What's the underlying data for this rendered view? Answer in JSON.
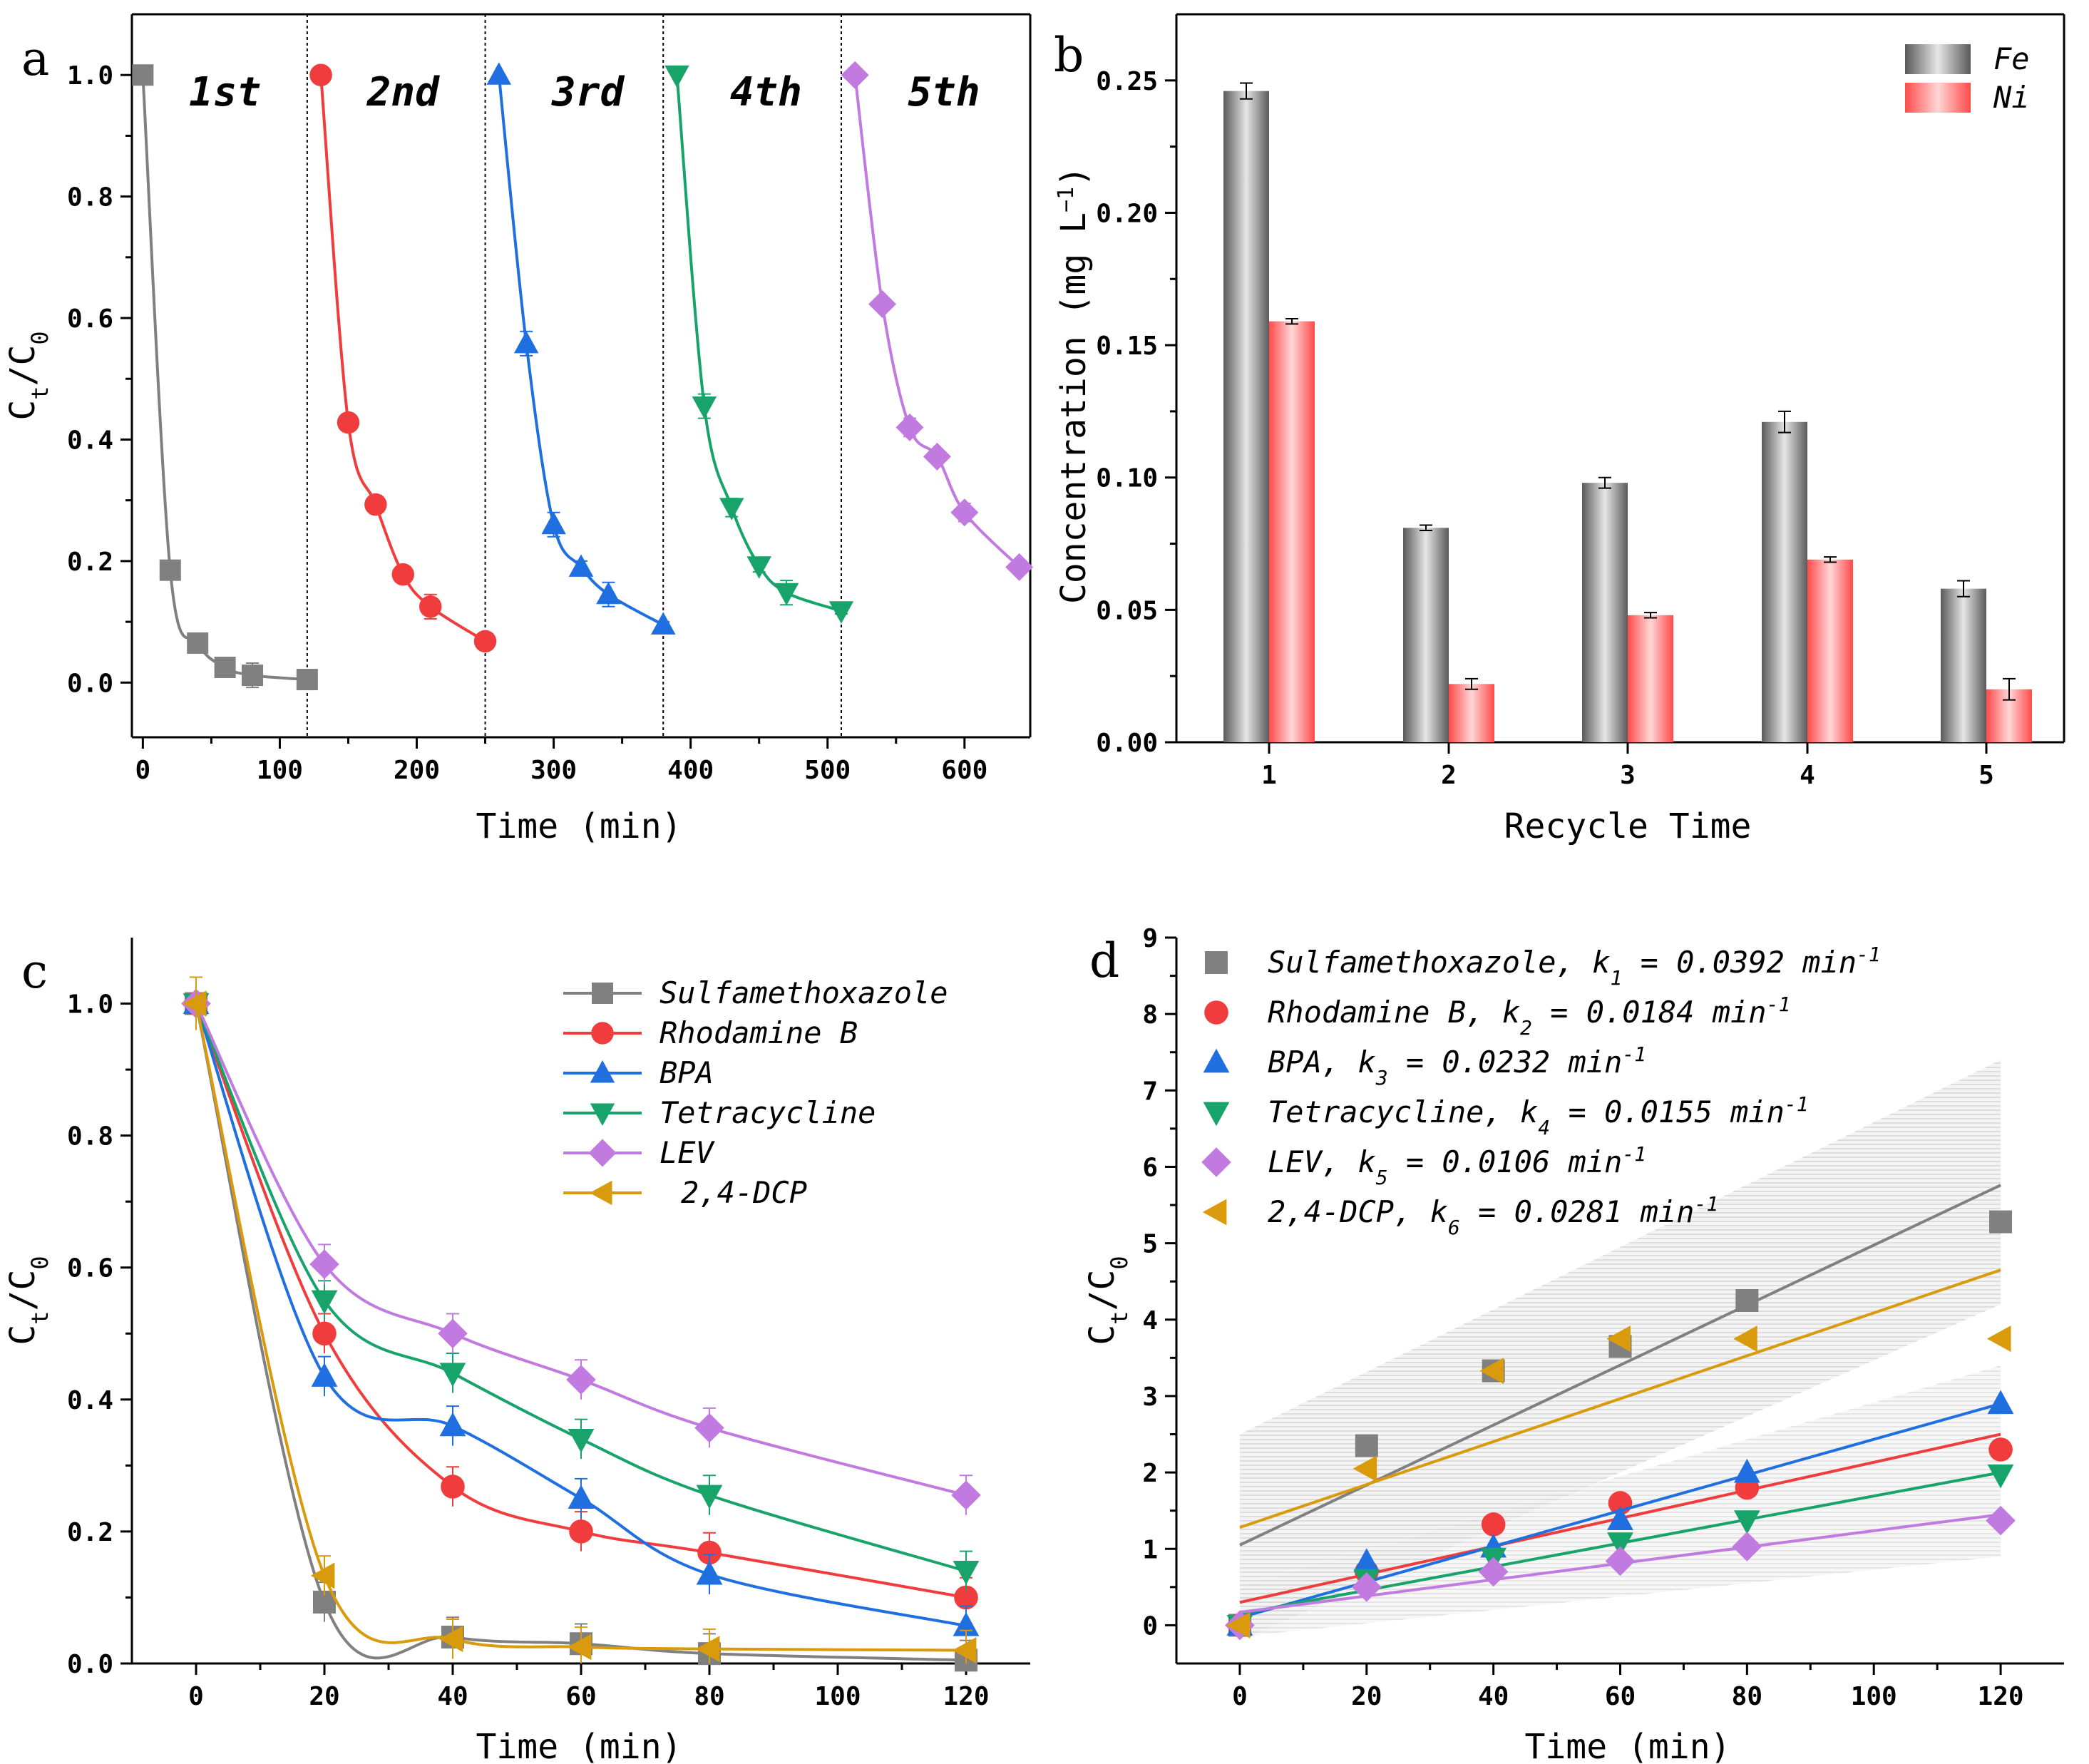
{
  "figure": {
    "chart_data": [
      {
        "panel": "a",
        "type": "line",
        "xlabel": "Time (min)",
        "ylabel_main": "C",
        "ylabel_sub1": "t",
        "ylabel_sub2": "0",
        "xlim": [
          -8,
          648
        ],
        "ylim": [
          -0.09,
          1.1
        ],
        "xticks": [
          0,
          100,
          200,
          300,
          400,
          500,
          600
        ],
        "yticks": [
          0.0,
          0.2,
          0.4,
          0.6,
          0.8,
          1.0
        ],
        "tick_labels_x": [
          "0",
          "100",
          "200",
          "300",
          "400",
          "500",
          "600"
        ],
        "tick_labels_y": [
          "0.0",
          "0.2",
          "0.4",
          "0.6",
          "0.8",
          "1.0"
        ],
        "cycle_dividers": [
          120,
          250,
          380,
          510
        ],
        "cycle_labels": [
          {
            "text": "1st",
            "x": 60
          },
          {
            "text": "2nd",
            "x": 190
          },
          {
            "text": "3rd",
            "x": 325
          },
          {
            "text": "4th",
            "x": 455
          },
          {
            "text": "5th",
            "x": 585
          }
        ],
        "series": [
          {
            "name": "1st",
            "color": "#808080",
            "marker": "square",
            "x": [
              0,
              20,
              40,
              60,
              80,
              120
            ],
            "y": [
              1.0,
              0.185,
              0.065,
              0.025,
              0.012,
              0.005
            ],
            "err": [
              0,
              0.01,
              0.015,
              0.01,
              0.02,
              0.01
            ]
          },
          {
            "name": "2nd",
            "color": "#f03c3c",
            "marker": "circle",
            "x": [
              130,
              150,
              170,
              190,
              210,
              250
            ],
            "y": [
              1.0,
              0.428,
              0.293,
              0.178,
              0.125,
              0.068
            ],
            "err": [
              0,
              0.01,
              0.015,
              0.01,
              0.02,
              0.01
            ]
          },
          {
            "name": "3rd",
            "color": "#1f6fe0",
            "marker": "triangle-up",
            "x": [
              260,
              280,
              300,
              320,
              340,
              380
            ],
            "y": [
              1.0,
              0.558,
              0.26,
              0.19,
              0.145,
              0.095
            ],
            "err": [
              0,
              0.02,
              0.02,
              0.01,
              0.02,
              0.005
            ]
          },
          {
            "name": "4th",
            "color": "#18a36a",
            "marker": "triangle-down",
            "x": [
              390,
              410,
              430,
              450,
              470,
              510
            ],
            "y": [
              1.0,
              0.455,
              0.288,
              0.192,
              0.148,
              0.118
            ],
            "err": [
              0,
              0.02,
              0.015,
              0.01,
              0.02,
              0.005
            ]
          },
          {
            "name": "5th",
            "color": "#c17ae0",
            "marker": "diamond",
            "x": [
              520,
              540,
              560,
              580,
              600,
              640
            ],
            "y": [
              1.0,
              0.623,
              0.42,
              0.372,
              0.28,
              0.19
            ],
            "err": [
              0,
              0.01,
              0.015,
              0.01,
              0.015,
              0.005
            ]
          }
        ]
      },
      {
        "panel": "b",
        "type": "bar",
        "xlabel": "Recycle Time",
        "ylabel_pre": "Concentration (mg L",
        "ylabel_sup": "−1",
        "ylabel_post": ")",
        "categories": [
          "1",
          "2",
          "3",
          "4",
          "5"
        ],
        "ylim": [
          0,
          0.275
        ],
        "yticks": [
          0.0,
          0.05,
          0.1,
          0.15,
          0.2,
          0.25
        ],
        "tick_labels_y": [
          "0.00",
          "0.05",
          "0.10",
          "0.15",
          "0.20",
          "0.25"
        ],
        "series": [
          {
            "name": "Fe",
            "color": "#808080",
            "values": [
              0.246,
              0.081,
              0.098,
              0.121,
              0.058
            ],
            "err": [
              0.003,
              0.001,
              0.002,
              0.004,
              0.003
            ]
          },
          {
            "name": "Ni",
            "color": "#ff6b6b",
            "values": [
              0.159,
              0.022,
              0.048,
              0.069,
              0.02
            ],
            "err": [
              0.001,
              0.002,
              0.001,
              0.001,
              0.004
            ]
          }
        ]
      },
      {
        "panel": "c",
        "type": "line",
        "xlabel": "Time (min)",
        "ylabel_main": "C",
        "ylabel_sub1": "t",
        "ylabel_sub2": "0",
        "xlim": [
          -10,
          130
        ],
        "ylim": [
          0,
          1.1
        ],
        "xticks": [
          0,
          20,
          40,
          60,
          80,
          100,
          120
        ],
        "yticks": [
          0.0,
          0.2,
          0.4,
          0.6,
          0.8,
          1.0
        ],
        "tick_labels_x": [
          "0",
          "20",
          "40",
          "60",
          "80",
          "100",
          "120"
        ],
        "tick_labels_y": [
          "0.0",
          "0.2",
          "0.4",
          "0.6",
          "0.8",
          "1.0"
        ],
        "legend": [
          "Sulfamethoxazole",
          "Rhodamine B",
          "BPA",
          "Tetracycline",
          "LEV",
          "2,4-DCP"
        ],
        "series": [
          {
            "name": "Sulfamethoxazole",
            "color": "#808080",
            "marker": "square",
            "x": [
              0,
              20,
              40,
              60,
              80,
              120
            ],
            "y": [
              1.0,
              0.093,
              0.04,
              0.03,
              0.015,
              0.005
            ]
          },
          {
            "name": "Rhodamine B",
            "color": "#f03c3c",
            "marker": "circle",
            "x": [
              0,
              20,
              40,
              60,
              80,
              120
            ],
            "y": [
              1.0,
              0.5,
              0.268,
              0.2,
              0.168,
              0.1
            ]
          },
          {
            "name": "BPA",
            "color": "#1f6fe0",
            "marker": "triangle-up",
            "x": [
              0,
              20,
              40,
              60,
              80,
              120
            ],
            "y": [
              1.0,
              0.435,
              0.36,
              0.25,
              0.135,
              0.057
            ]
          },
          {
            "name": "Tetracycline",
            "color": "#18a36a",
            "marker": "triangle-down",
            "x": [
              0,
              20,
              40,
              60,
              80,
              120
            ],
            "y": [
              1.0,
              0.55,
              0.44,
              0.34,
              0.255,
              0.14
            ]
          },
          {
            "name": "LEV",
            "color": "#c17ae0",
            "marker": "diamond",
            "x": [
              0,
              20,
              40,
              60,
              80,
              120
            ],
            "y": [
              1.0,
              0.605,
              0.5,
              0.43,
              0.357,
              0.255
            ]
          },
          {
            "name": "2,4-DCP",
            "color": "#d99a0b",
            "marker": "triangle-left",
            "x": [
              0,
              20,
              40,
              60,
              80,
              120
            ],
            "y": [
              1.0,
              0.133,
              0.037,
              0.025,
              0.022,
              0.02
            ]
          }
        ]
      },
      {
        "panel": "d",
        "type": "scatter",
        "xlabel": "Time (min)",
        "ylabel_main": "C",
        "ylabel_sub1": "t",
        "ylabel_sub2": "0",
        "xlim": [
          -10,
          130
        ],
        "ylim": [
          -0.5,
          9
        ],
        "xticks": [
          0,
          20,
          40,
          60,
          80,
          100,
          120
        ],
        "yticks": [
          0,
          1,
          2,
          3,
          4,
          5,
          6,
          7,
          8,
          9
        ],
        "tick_labels_x": [
          "0",
          "20",
          "40",
          "60",
          "80",
          "100",
          "120"
        ],
        "tick_labels_y": [
          "0",
          "1",
          "2",
          "3",
          "4",
          "5",
          "6",
          "7",
          "8",
          "9"
        ],
        "legend": [
          {
            "name": "Sulfamethoxazole, k",
            "sub": "1",
            "rest": " = 0.0392 min",
            "sup": "-1"
          },
          {
            "name": "Rhodamine B, k",
            "sub": "2",
            "rest": " = 0.0184 min",
            "sup": "-1"
          },
          {
            "name": "BPA, k",
            "sub": "3",
            "rest": " = 0.0232 min",
            "sup": "-1"
          },
          {
            "name": "Tetracycline, k",
            "sub": "4",
            "rest": " = 0.0155 min",
            "sup": "-1"
          },
          {
            "name": "LEV, k",
            "sub": "5",
            "rest": " = 0.0106 min",
            "sup": "-1"
          },
          {
            "name": "2,4-DCP, k",
            "sub": "6",
            "rest": " = 0.0281 min",
            "sup": "-1"
          }
        ],
        "series": [
          {
            "name": "Sulfamethoxazole",
            "k": 0.0392,
            "color": "#808080",
            "marker": "square",
            "x": [
              0,
              20,
              40,
              60,
              80,
              120
            ],
            "y": [
              0,
              2.35,
              3.33,
              3.65,
              4.25,
              5.28
            ],
            "fit": [
              1.05,
              5.76
            ]
          },
          {
            "name": "Rhodamine B",
            "k": 0.0184,
            "color": "#f03c3c",
            "marker": "circle",
            "x": [
              0,
              20,
              40,
              60,
              80,
              120
            ],
            "y": [
              0,
              0.7,
              1.32,
              1.6,
              1.8,
              2.3
            ],
            "fit": [
              0.3,
              2.5
            ]
          },
          {
            "name": "BPA",
            "k": 0.0232,
            "color": "#1f6fe0",
            "marker": "triangle-up",
            "x": [
              0,
              20,
              40,
              60,
              80,
              120
            ],
            "y": [
              0,
              0.83,
              1.02,
              1.38,
              2.0,
              2.9
            ],
            "fit": [
              0.1,
              2.9
            ]
          },
          {
            "name": "Tetracycline",
            "k": 0.0155,
            "color": "#18a36a",
            "marker": "triangle-down",
            "x": [
              0,
              20,
              40,
              60,
              80,
              120
            ],
            "y": [
              0,
              0.6,
              0.88,
              1.08,
              1.37,
              1.97
            ],
            "fit": [
              0.15,
              2.0
            ]
          },
          {
            "name": "LEV",
            "k": 0.0106,
            "color": "#c17ae0",
            "marker": "diamond",
            "x": [
              0,
              20,
              40,
              60,
              80,
              120
            ],
            "y": [
              0,
              0.5,
              0.7,
              0.84,
              1.03,
              1.37
            ],
            "fit": [
              0.17,
              1.45
            ]
          },
          {
            "name": "2,4-DCP",
            "k": 0.0281,
            "color": "#d99a0b",
            "marker": "triangle-left",
            "x": [
              0,
              20,
              40,
              60,
              80,
              120
            ],
            "y": [
              0,
              2.05,
              3.33,
              3.75,
              3.75,
              3.75
            ],
            "fit": [
              1.28,
              4.65
            ]
          }
        ]
      }
    ]
  }
}
